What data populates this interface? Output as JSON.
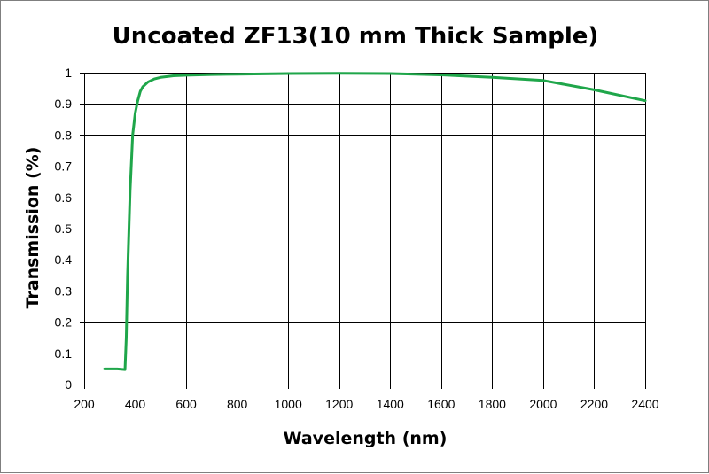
{
  "chart_data": {
    "type": "line",
    "title": "Uncoated ZF13(10 mm Thick Sample)",
    "xlabel": "Wavelength (nm)",
    "ylabel": "Transmission (%)",
    "xlim": [
      200,
      2400
    ],
    "ylim": [
      0,
      1
    ],
    "x_ticks": [
      200,
      400,
      600,
      800,
      1000,
      1200,
      1400,
      1600,
      1800,
      2000,
      2200,
      2400
    ],
    "y_ticks": [
      0,
      0.1,
      0.2,
      0.3,
      0.4,
      0.5,
      0.6,
      0.7,
      0.8,
      0.9,
      1
    ],
    "y_tick_labels": [
      "0",
      "0.1",
      "0.2",
      "0.3",
      "0.4",
      "0.5",
      "0.6",
      "0.7",
      "0.8",
      "0.9",
      "1"
    ],
    "grid": true,
    "legend": "none",
    "series": [
      {
        "color": "#1fa64a",
        "x": [
          280,
          300,
          330,
          360,
          365,
          370,
          380,
          390,
          400,
          405,
          410,
          420,
          430,
          450,
          475,
          500,
          550,
          600,
          700,
          800,
          1000,
          1200,
          1400,
          1600,
          1800,
          2000,
          2200,
          2400
        ],
        "y": [
          0.05,
          0.05,
          0.05,
          0.048,
          0.15,
          0.35,
          0.62,
          0.8,
          0.87,
          0.89,
          0.91,
          0.94,
          0.955,
          0.97,
          0.98,
          0.985,
          0.99,
          0.992,
          0.994,
          0.995,
          0.997,
          0.998,
          0.997,
          0.993,
          0.985,
          0.975,
          0.945,
          0.91
        ]
      }
    ]
  }
}
